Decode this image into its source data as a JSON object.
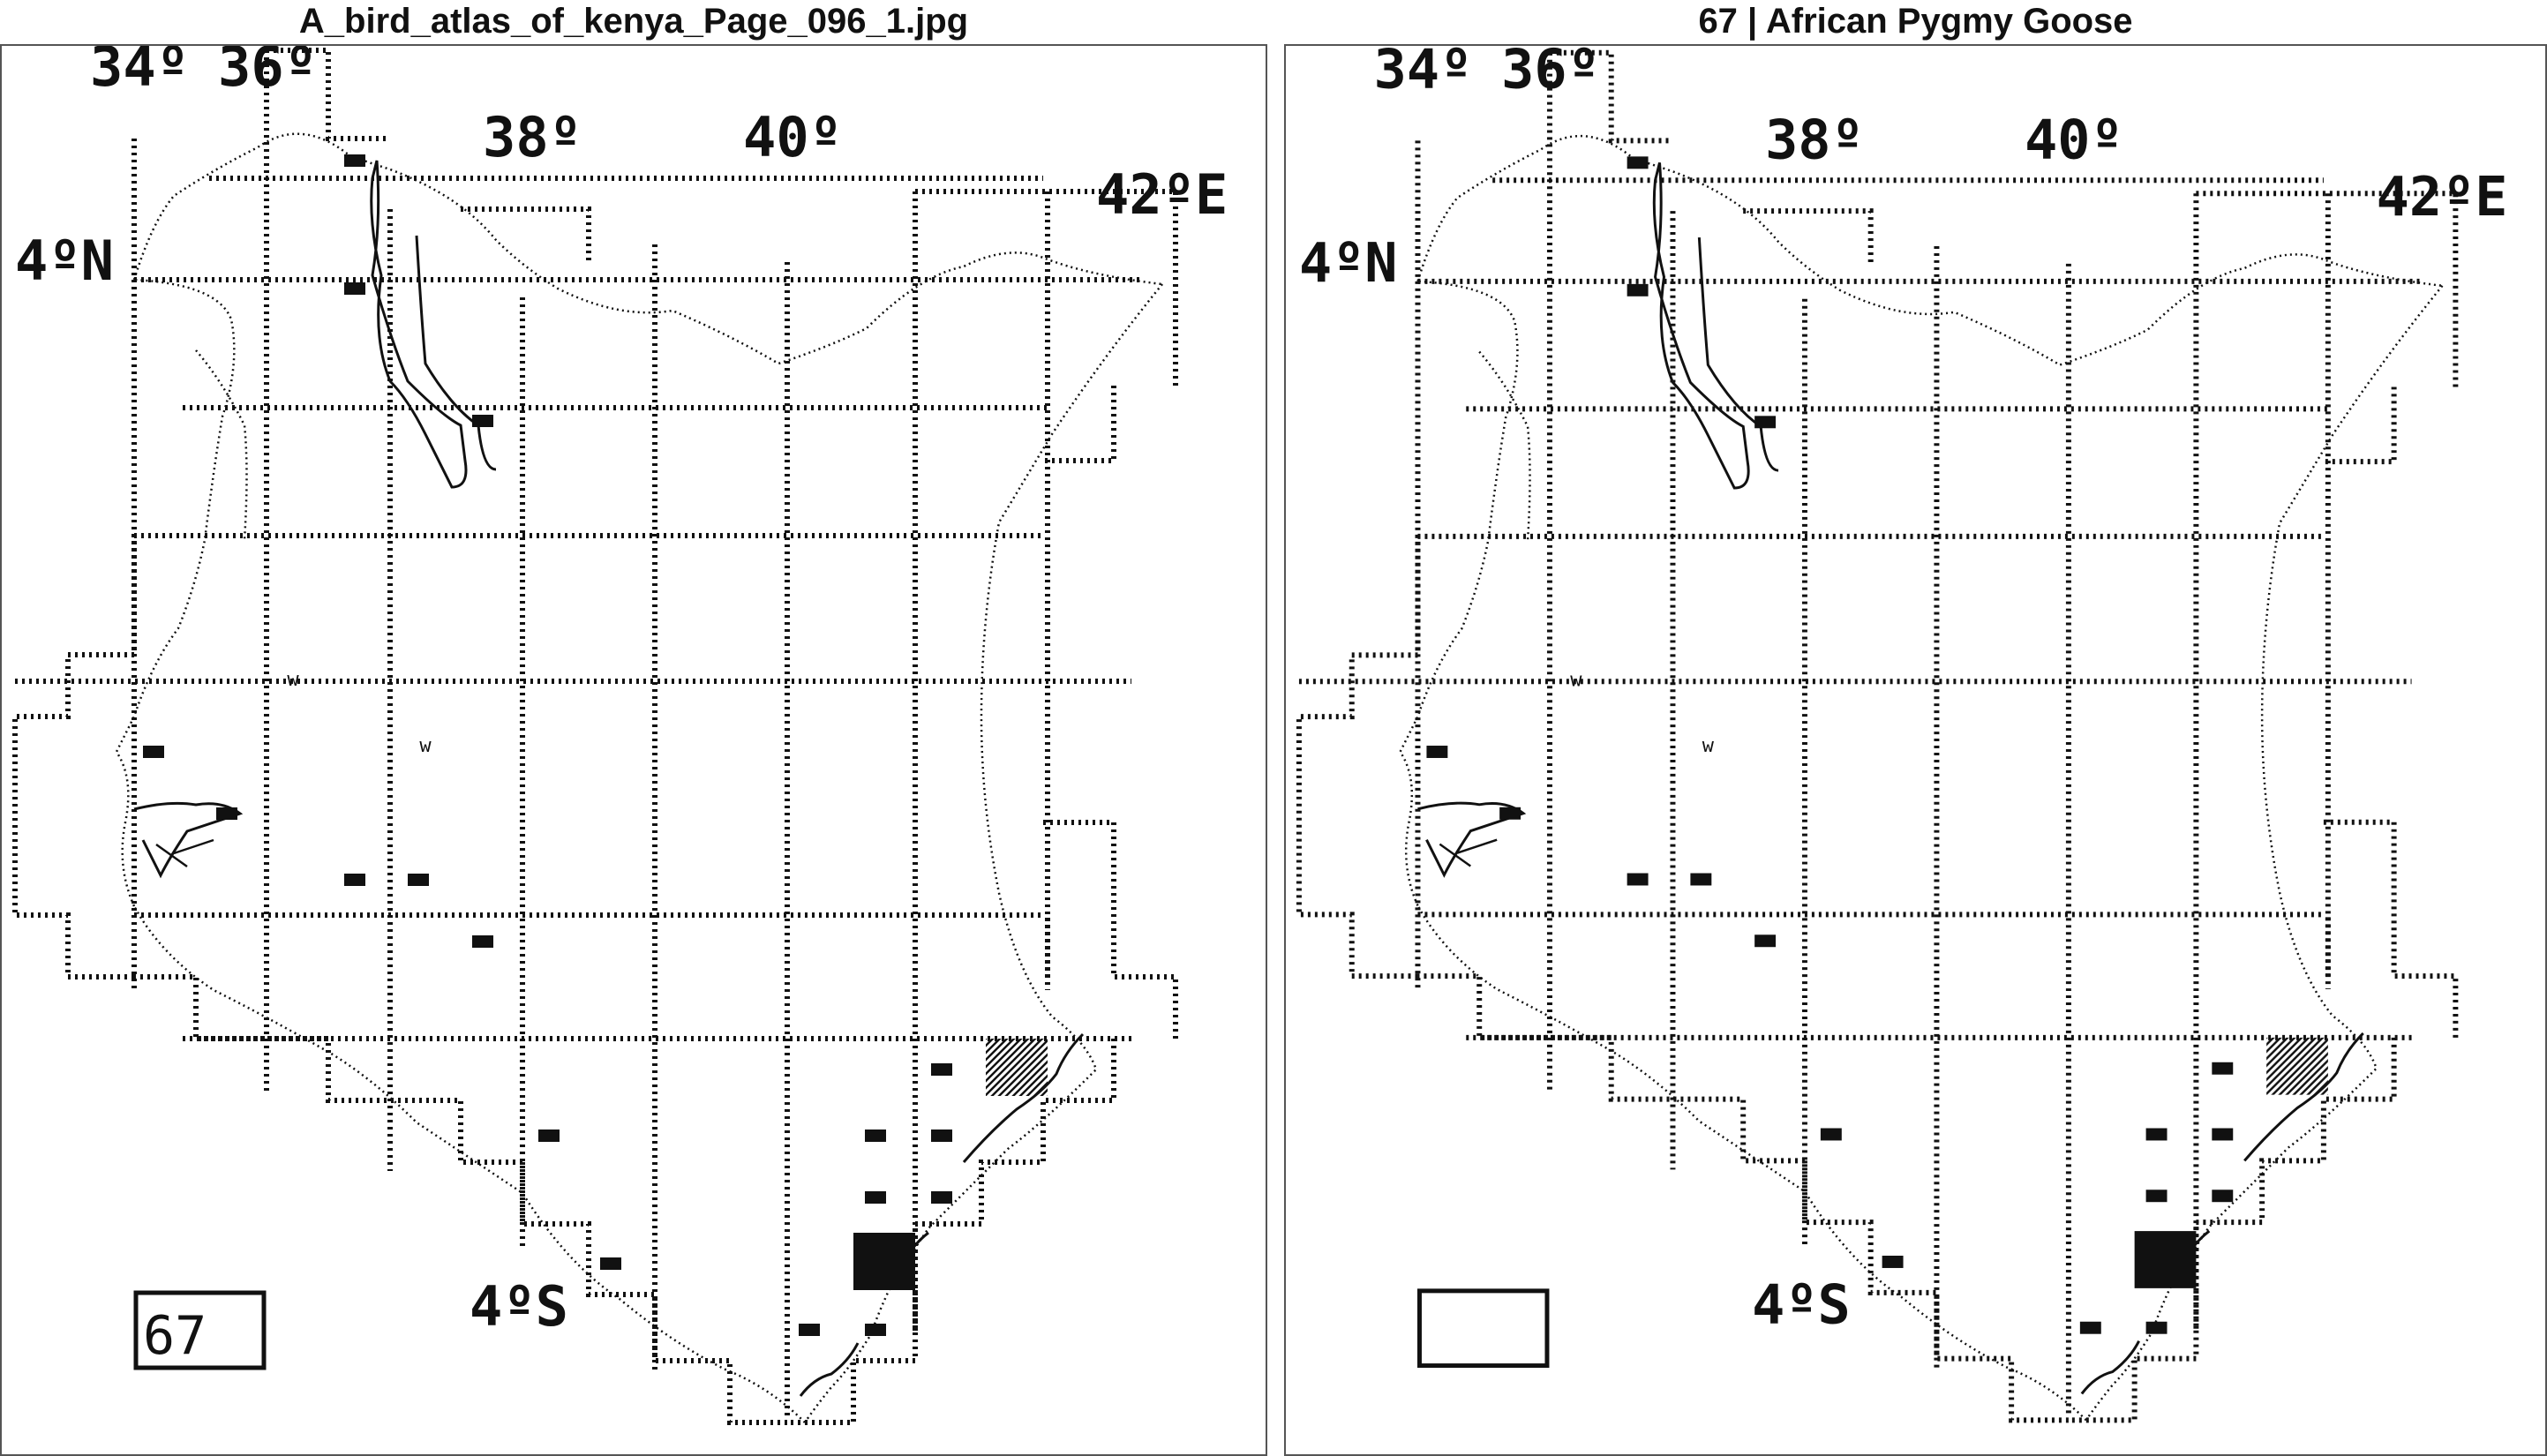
{
  "left_panel": {
    "title": "A_bird_atlas_of_kenya_Page_096_1.jpg",
    "species_box_text": "67"
  },
  "right_panel": {
    "title": "67 | African Pygmy Goose",
    "species_box_text": ""
  },
  "map": {
    "longitude_labels": [
      "34º",
      "36º",
      "38º",
      "40º",
      "42ºE"
    ],
    "latitude_labels": [
      "4ºN",
      "4ºS"
    ],
    "w_marker_text": "w",
    "colors": {
      "ink": "#111111",
      "background": "#ffffff"
    }
  }
}
